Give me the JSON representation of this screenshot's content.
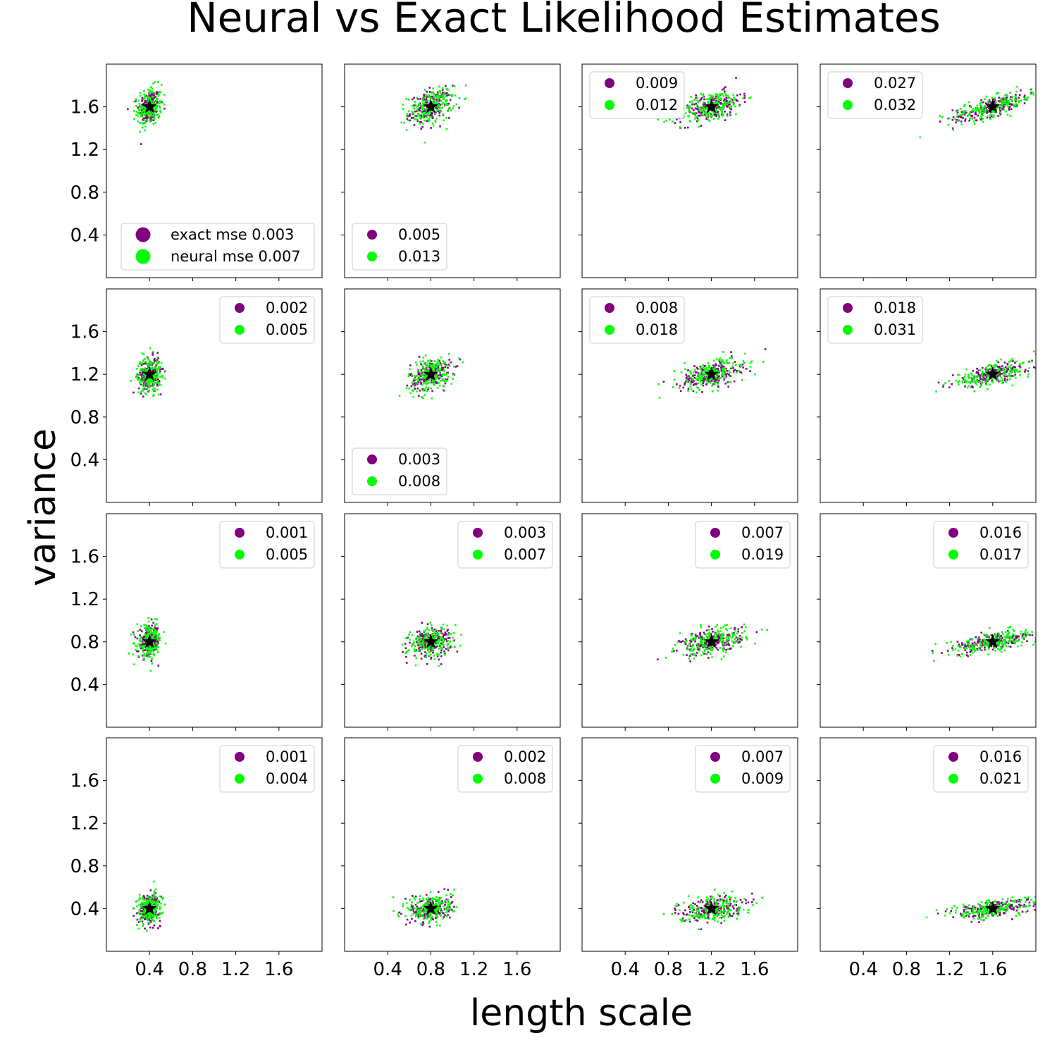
{
  "colors": {
    "exact": "#800080",
    "neural": "#00ff00",
    "truth": "#000000"
  },
  "chart_data": {
    "type": "scatter",
    "title": "Neural vs Exact Likelihood Estimates",
    "xlabel": "length scale",
    "ylabel": "variance",
    "grid": false,
    "rows": 4,
    "cols": 4,
    "xlim": [
      0.0,
      2.0
    ],
    "ylim": [
      0.0,
      2.0
    ],
    "xticks": [
      0.4,
      0.8,
      1.2,
      1.6
    ],
    "yticks": [
      0.4,
      0.8,
      1.2,
      1.6
    ],
    "xtick_labels": [
      "0.4",
      "0.8",
      "1.2",
      "1.6"
    ],
    "ytick_labels": [
      "0.4",
      "0.8",
      "1.2",
      "1.6"
    ],
    "series": [
      {
        "name": "exact",
        "color": "#800080"
      },
      {
        "name": "neural",
        "color": "#00ff00"
      }
    ],
    "panels": [
      {
        "true_length_scale": 0.4,
        "true_variance": 1.6,
        "legend_position": "lower-right",
        "legend": [
          "exact mse 0.003",
          "neural mse 0.007"
        ]
      },
      {
        "true_length_scale": 0.8,
        "true_variance": 1.6,
        "legend_position": "lower-left",
        "legend": [
          "0.005",
          "0.013"
        ]
      },
      {
        "true_length_scale": 1.2,
        "true_variance": 1.6,
        "legend_position": "upper-left",
        "legend": [
          "0.009",
          "0.012"
        ]
      },
      {
        "true_length_scale": 1.6,
        "true_variance": 1.6,
        "legend_position": "upper-left",
        "legend": [
          "0.027",
          "0.032"
        ]
      },
      {
        "true_length_scale": 0.4,
        "true_variance": 1.2,
        "legend_position": "upper-right",
        "legend": [
          "0.002",
          "0.005"
        ]
      },
      {
        "true_length_scale": 0.8,
        "true_variance": 1.2,
        "legend_position": "lower-left",
        "legend": [
          "0.003",
          "0.008"
        ]
      },
      {
        "true_length_scale": 1.2,
        "true_variance": 1.2,
        "legend_position": "upper-left",
        "legend": [
          "0.008",
          "0.018"
        ]
      },
      {
        "true_length_scale": 1.6,
        "true_variance": 1.2,
        "legend_position": "upper-left",
        "legend": [
          "0.018",
          "0.031"
        ]
      },
      {
        "true_length_scale": 0.4,
        "true_variance": 0.8,
        "legend_position": "upper-right",
        "legend": [
          "0.001",
          "0.005"
        ]
      },
      {
        "true_length_scale": 0.8,
        "true_variance": 0.8,
        "legend_position": "upper-right",
        "legend": [
          "0.003",
          "0.007"
        ]
      },
      {
        "true_length_scale": 1.2,
        "true_variance": 0.8,
        "legend_position": "upper-right",
        "legend": [
          "0.007",
          "0.019"
        ]
      },
      {
        "true_length_scale": 1.6,
        "true_variance": 0.8,
        "legend_position": "upper-right",
        "legend": [
          "0.016",
          "0.017"
        ]
      },
      {
        "true_length_scale": 0.4,
        "true_variance": 0.4,
        "legend_position": "upper-right",
        "legend": [
          "0.001",
          "0.004"
        ]
      },
      {
        "true_length_scale": 0.8,
        "true_variance": 0.4,
        "legend_position": "upper-right",
        "legend": [
          "0.002",
          "0.008"
        ]
      },
      {
        "true_length_scale": 1.2,
        "true_variance": 0.4,
        "legend_position": "upper-right",
        "legend": [
          "0.007",
          "0.009"
        ]
      },
      {
        "true_length_scale": 1.6,
        "true_variance": 0.4,
        "legend_position": "upper-right",
        "legend": [
          "0.016",
          "0.021"
        ]
      }
    ]
  }
}
